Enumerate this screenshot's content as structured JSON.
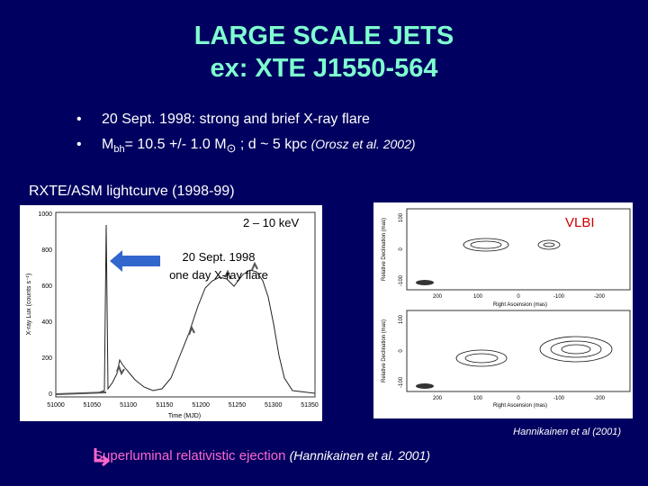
{
  "title": {
    "line1": "LARGE SCALE JETS",
    "line2": "ex: XTE J1550-564"
  },
  "bullets": [
    {
      "text": "20 Sept. 1998: strong and brief X-ray flare"
    },
    {
      "parts": [
        "M",
        "bh",
        "= 10.5 +/- 1.0 M",
        "⊙",
        " ; d ~ 5 kpc ",
        "(Orosz et al. 2002)"
      ]
    }
  ],
  "lightcurve": {
    "caption": "RXTE/ASM lightcurve (1998-99)",
    "band": "2 – 10 keV",
    "flare_note": [
      "20 Sept. 1998",
      "one day X-ray flare"
    ],
    "ylabel": "X-ray Lux (counts s⁻¹)",
    "xlabel": "Time (MJD)",
    "xticks": [
      51000,
      51050,
      51100,
      51150,
      51200,
      51250,
      51300,
      51350
    ],
    "yticks": [
      0,
      200,
      400,
      600,
      800,
      1000
    ]
  },
  "vlbi": {
    "label": "VLBI",
    "ylabel": "Relative Declination (mas)",
    "xlabel": "Right Ascension (mas)",
    "yticks": [
      100,
      0,
      -100
    ],
    "xticks": [
      200,
      100,
      0,
      -100,
      -200
    ],
    "credit": "Hannikainen et al (2001)"
  },
  "footer": {
    "text": "Superluminal relativistic ejection ",
    "ref": "(Hannikainen et al. 2001)"
  }
}
